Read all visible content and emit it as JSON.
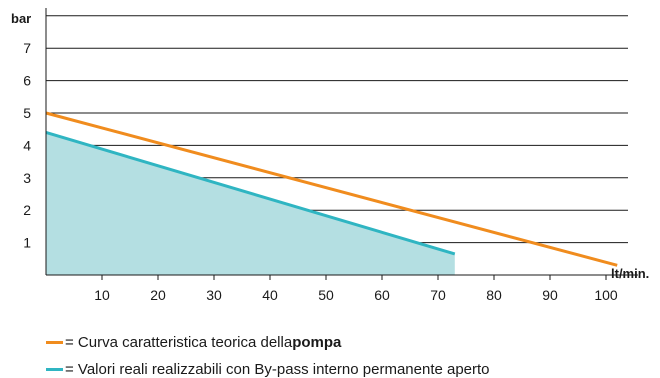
{
  "chart_data": {
    "type": "line",
    "xlabel": "lt/min.",
    "ylabel": "bar",
    "xticks": [
      10,
      20,
      30,
      40,
      50,
      60,
      70,
      80,
      90,
      100
    ],
    "yticks": [
      1,
      2,
      3,
      4,
      5,
      6,
      7
    ],
    "xlim": [
      0,
      102
    ],
    "ylim": [
      0,
      8
    ],
    "grid": "horizontal",
    "series": [
      {
        "color": "#f08c1e",
        "x": [
          0,
          102
        ],
        "y": [
          5.0,
          0.3
        ]
      },
      {
        "color": "#2fb5c2",
        "fill": "#b4dfe2",
        "x": [
          0,
          73
        ],
        "y": [
          4.4,
          0.65
        ]
      }
    ]
  },
  "legend": [
    {
      "color": "#f08c1e",
      "prefix": "= Curva caratteristica teorica della ",
      "bold": "pompa"
    },
    {
      "color": "#2fb5c2",
      "prefix": "= Valori reali realizzabili con By-pass interno permanente aperto",
      "bold": ""
    }
  ]
}
